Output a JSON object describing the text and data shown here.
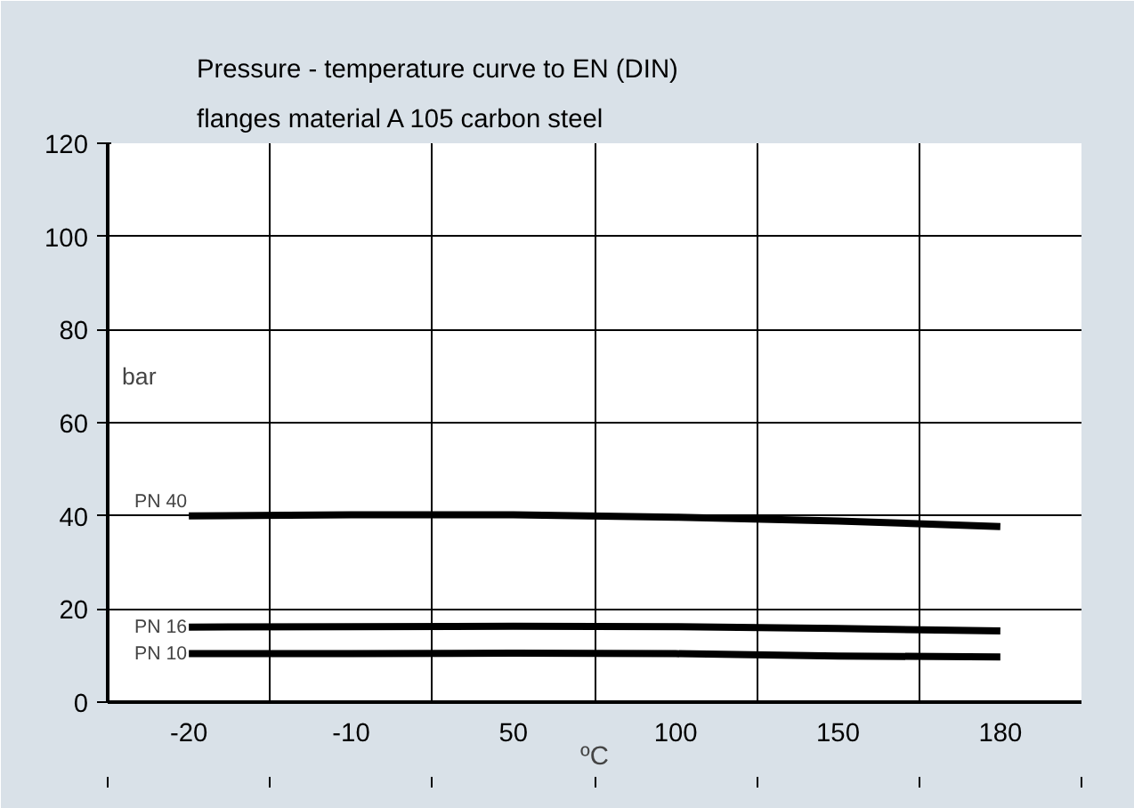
{
  "chart_data": {
    "type": "line",
    "title": "Pressure - temperature curve to EN (DIN)",
    "subtitle": "flanges material A 105 carbon steel",
    "xlabel": "ºC",
    "ylabel": "bar",
    "categories": [
      "-20",
      "-10",
      "50",
      "100",
      "150",
      "180"
    ],
    "ylim": [
      0,
      120
    ],
    "yticks": [
      0,
      20,
      40,
      60,
      80,
      100,
      120
    ],
    "grid": true,
    "marker": "none",
    "line_style": "solid",
    "series": [
      {
        "name": "PN 40",
        "color": "#000000",
        "values": [
          40,
          40.2,
          40.2,
          39.7,
          38.9,
          37.7
        ]
      },
      {
        "name": "PN 16",
        "color": "#000000",
        "values": [
          16.1,
          16.2,
          16.3,
          16.2,
          15.8,
          15.3
        ]
      },
      {
        "name": "PN 10",
        "color": "#000000",
        "values": [
          10.4,
          10.4,
          10.5,
          10.4,
          9.9,
          9.7
        ]
      }
    ]
  }
}
